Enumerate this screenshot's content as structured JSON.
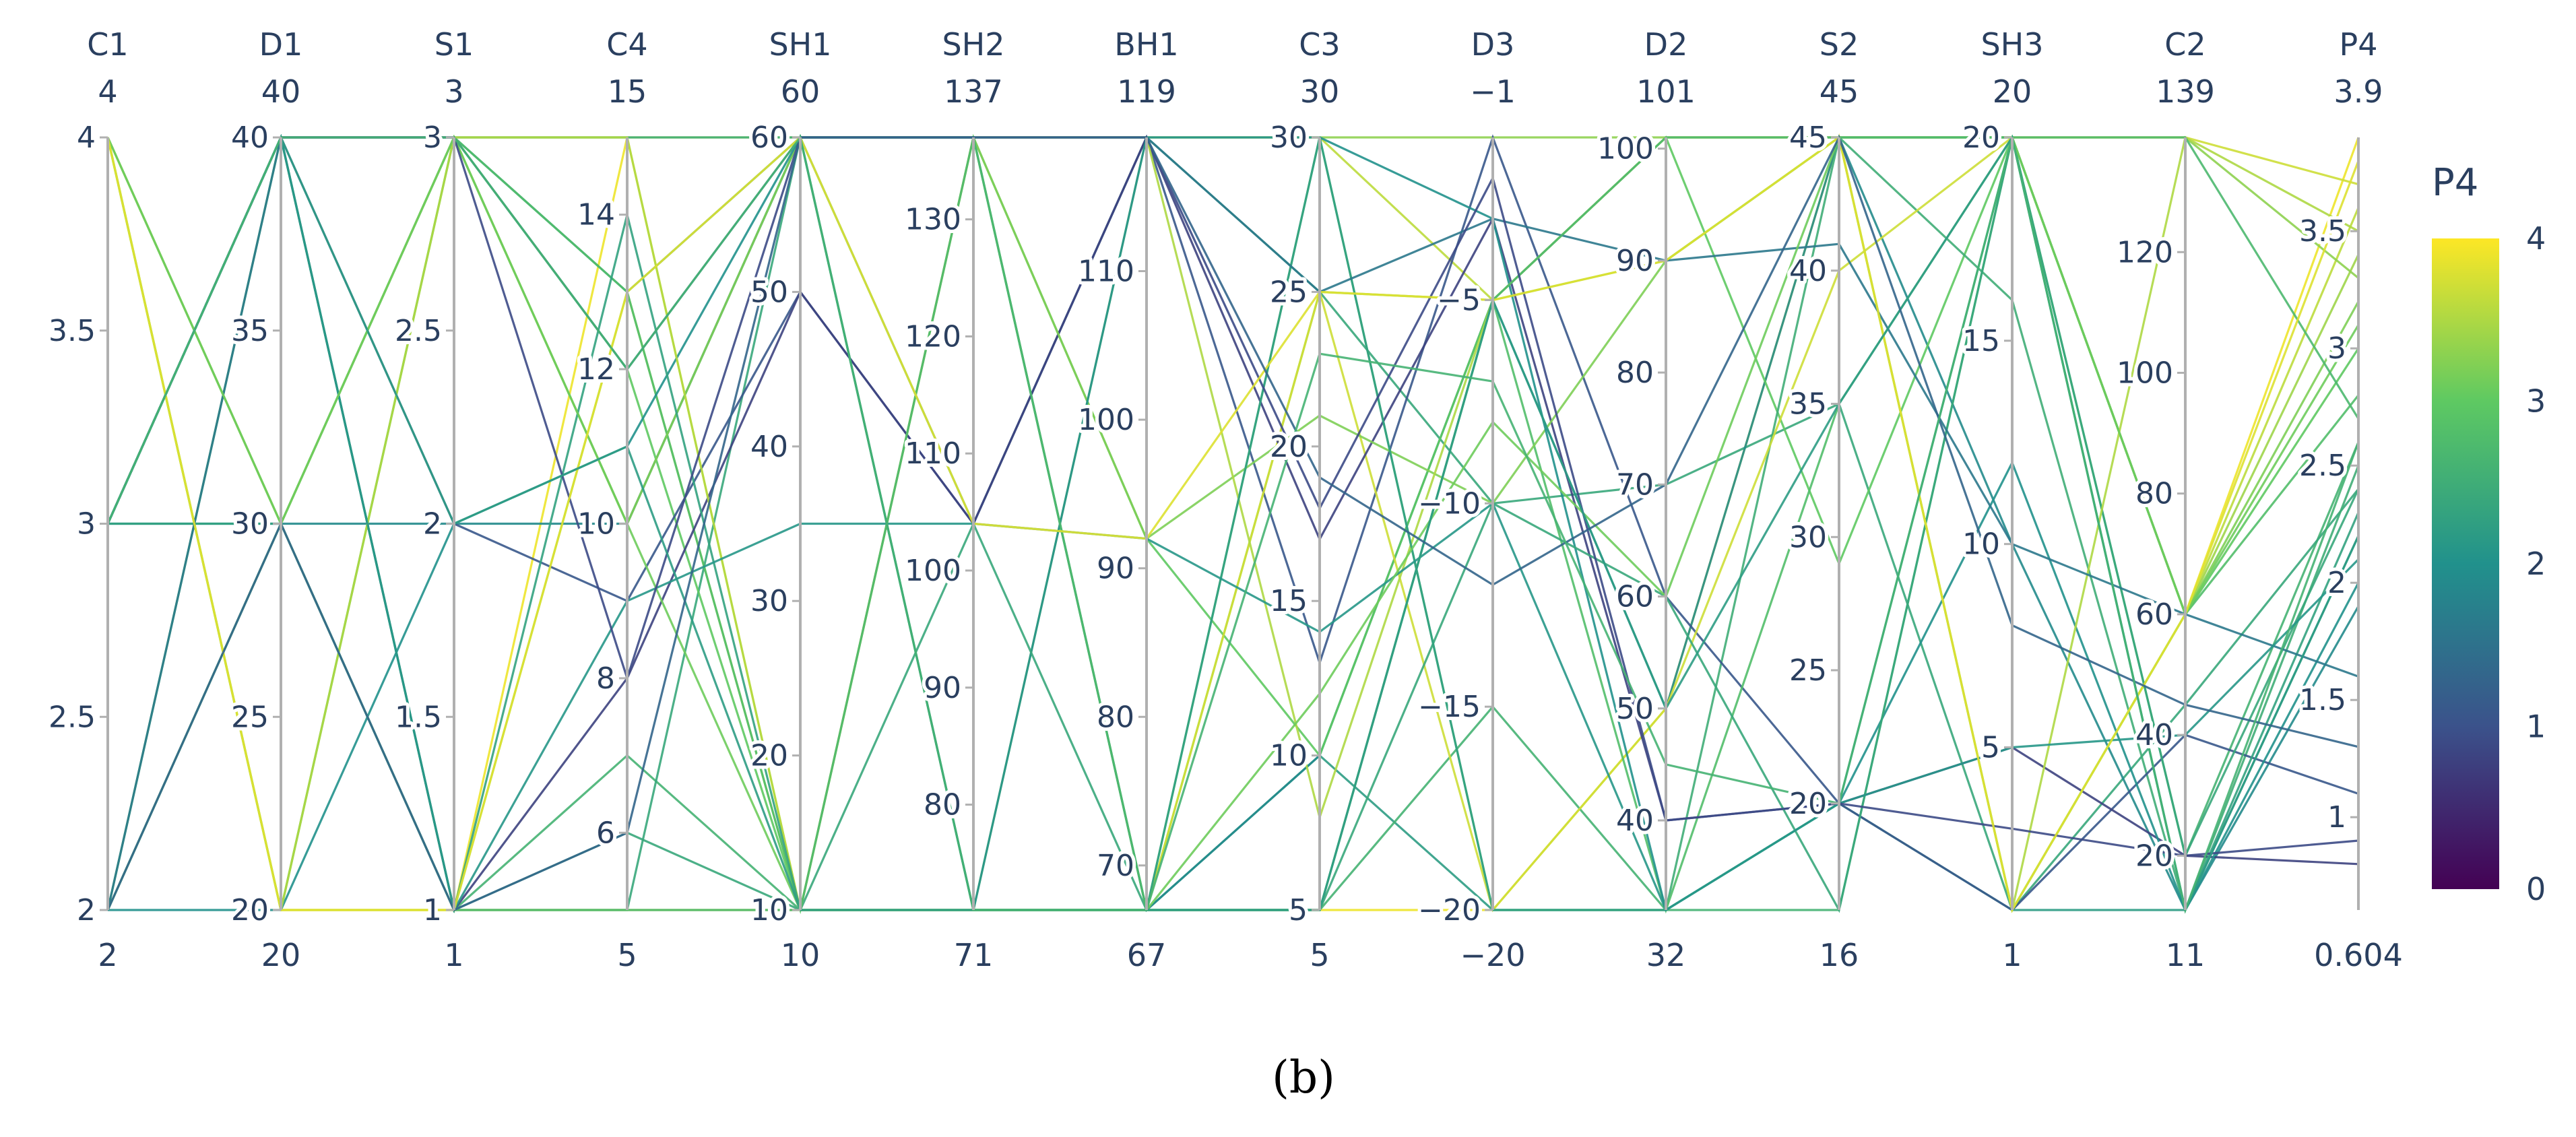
{
  "chart_data": {
    "type": "parcoords",
    "caption": "(b)",
    "color_by": "P4",
    "colorscale": "viridis",
    "colorbar": {
      "title": "P4",
      "range": [
        0,
        4
      ],
      "ticks": [
        0,
        1,
        2,
        3,
        4
      ],
      "tick_labels": [
        "0",
        "1",
        "2",
        "3",
        "4"
      ],
      "colors": [
        "#440154",
        "#3b528b",
        "#21918c",
        "#5ec962",
        "#fde725"
      ]
    },
    "axes": [
      {
        "name": "C1",
        "min_label": "2",
        "max_label": "4",
        "range": [
          2,
          4
        ],
        "ticks": [
          2,
          2.5,
          3,
          3.5,
          4
        ],
        "tick_labels": [
          "2",
          "2.5",
          "3",
          "3.5",
          "4"
        ]
      },
      {
        "name": "D1",
        "min_label": "20",
        "max_label": "40",
        "range": [
          20,
          40
        ],
        "ticks": [
          20,
          25,
          30,
          35,
          40
        ],
        "tick_labels": [
          "20",
          "25",
          "30",
          "35",
          "40"
        ]
      },
      {
        "name": "S1",
        "min_label": "1",
        "max_label": "3",
        "range": [
          1,
          3
        ],
        "ticks": [
          1,
          1.5,
          2,
          2.5,
          3
        ],
        "tick_labels": [
          "1",
          "1.5",
          "2",
          "2.5",
          "3"
        ]
      },
      {
        "name": "C4",
        "min_label": "5",
        "max_label": "15",
        "range": [
          5,
          15
        ],
        "ticks": [
          6,
          8,
          10,
          12,
          14
        ],
        "tick_labels": [
          "6",
          "8",
          "10",
          "12",
          "14"
        ]
      },
      {
        "name": "SH1",
        "min_label": "10",
        "max_label": "60",
        "range": [
          10,
          60
        ],
        "ticks": [
          10,
          20,
          30,
          40,
          50,
          60
        ],
        "tick_labels": [
          "10",
          "20",
          "30",
          "40",
          "50",
          "60"
        ]
      },
      {
        "name": "SH2",
        "min_label": "71",
        "max_label": "137",
        "range": [
          71,
          137
        ],
        "ticks": [
          80,
          90,
          100,
          110,
          120,
          130
        ],
        "tick_labels": [
          "80",
          "90",
          "100",
          "110",
          "120",
          "130"
        ]
      },
      {
        "name": "BH1",
        "min_label": "67",
        "max_label": "119",
        "range": [
          67,
          119
        ],
        "ticks": [
          70,
          80,
          90,
          100,
          110
        ],
        "tick_labels": [
          "70",
          "80",
          "90",
          "100",
          "110"
        ]
      },
      {
        "name": "C3",
        "min_label": "5",
        "max_label": "30",
        "range": [
          5,
          30
        ],
        "ticks": [
          5,
          10,
          15,
          20,
          25,
          30
        ],
        "tick_labels": [
          "5",
          "10",
          "15",
          "20",
          "25",
          "30"
        ]
      },
      {
        "name": "D3",
        "min_label": "−20",
        "max_label": "−1",
        "range": [
          -20,
          -1
        ],
        "ticks": [
          -20,
          -15,
          -10,
          -5
        ],
        "tick_labels": [
          "−20",
          "−15",
          "−10",
          "−5"
        ]
      },
      {
        "name": "D2",
        "min_label": "32",
        "max_label": "101",
        "range": [
          32,
          101
        ],
        "ticks": [
          40,
          50,
          60,
          70,
          80,
          90,
          100
        ],
        "tick_labels": [
          "40",
          "50",
          "60",
          "70",
          "80",
          "90",
          "100"
        ]
      },
      {
        "name": "S2",
        "min_label": "16",
        "max_label": "45",
        "range": [
          16,
          45
        ],
        "ticks": [
          20,
          25,
          30,
          35,
          40,
          45
        ],
        "tick_labels": [
          "20",
          "25",
          "30",
          "35",
          "40",
          "45"
        ]
      },
      {
        "name": "SH3",
        "min_label": "1",
        "max_label": "20",
        "range": [
          1,
          20
        ],
        "ticks": [
          5,
          10,
          15,
          20
        ],
        "tick_labels": [
          "5",
          "10",
          "15",
          "20"
        ]
      },
      {
        "name": "C2",
        "min_label": "11",
        "max_label": "139",
        "range": [
          11,
          139
        ],
        "ticks": [
          20,
          40,
          60,
          80,
          100,
          120
        ],
        "tick_labels": [
          "20",
          "40",
          "60",
          "80",
          "100",
          "120"
        ]
      },
      {
        "name": "P4",
        "min_label": "0.604",
        "max_label": "3.9",
        "range": [
          0.604,
          3.9
        ],
        "ticks": [
          1,
          1.5,
          2,
          2.5,
          3,
          3.5
        ],
        "tick_labels": [
          "1",
          "1.5",
          "2",
          "2.5",
          "3",
          "3.5"
        ]
      }
    ],
    "lines": [
      [
        4,
        20,
        1,
        15,
        10,
        137,
        67,
        5,
        -20,
        50,
        45,
        1,
        60,
        3.9
      ],
      [
        4,
        20,
        3,
        15,
        60,
        137,
        119,
        30,
        -5,
        101,
        45,
        20,
        60,
        3.6
      ],
      [
        4,
        30,
        1,
        13,
        10,
        71,
        67,
        25,
        -5,
        90,
        45,
        20,
        60,
        3.4
      ],
      [
        3,
        40,
        3,
        13,
        60,
        137,
        67,
        10,
        -20,
        32,
        20,
        1,
        11,
        2.2
      ],
      [
        2,
        30,
        3,
        10,
        60,
        71,
        119,
        30,
        -1,
        101,
        45,
        20,
        139,
        3.3
      ],
      [
        3,
        40,
        1,
        7,
        10,
        71,
        67,
        5,
        -15,
        32,
        16,
        20,
        20,
        2.6
      ],
      [
        2,
        40,
        1,
        5,
        60,
        104,
        119,
        25,
        -10,
        70,
        35,
        1,
        45,
        2.4
      ],
      [
        3,
        30,
        2,
        10,
        60,
        137,
        67,
        10,
        -5,
        50,
        45,
        10,
        11,
        1.9
      ],
      [
        4,
        20,
        3,
        12,
        10,
        137,
        92,
        10,
        -5,
        101,
        29,
        20,
        60,
        3.0
      ],
      [
        2,
        30,
        3,
        15,
        60,
        71,
        67,
        30,
        -20,
        32,
        45,
        16,
        11,
        2.5
      ],
      [
        3,
        40,
        2,
        9,
        50,
        104,
        119,
        13,
        -1,
        60,
        20,
        1,
        40,
        1.1
      ],
      [
        4,
        20,
        1,
        5,
        10,
        71,
        67,
        25,
        -20,
        50,
        40,
        20,
        139,
        3.7
      ],
      [
        2,
        40,
        3,
        13,
        10,
        137,
        67,
        5,
        -5,
        32,
        35,
        20,
        60,
        2.8
      ],
      [
        3,
        40,
        1,
        8,
        50,
        104,
        119,
        17,
        -3,
        40,
        20,
        5,
        20,
        0.8
      ],
      [
        4,
        30,
        3,
        10,
        60,
        137,
        92,
        21,
        -10,
        90,
        45,
        1,
        60,
        3.2
      ],
      [
        2,
        20,
        2,
        11,
        60,
        71,
        119,
        30,
        -3,
        32,
        20,
        12,
        11,
        2.0
      ],
      [
        3,
        40,
        1,
        6,
        10,
        104,
        67,
        5,
        -10,
        60,
        16,
        20,
        20,
        2.4
      ],
      [
        4,
        20,
        3,
        15,
        10,
        137,
        119,
        8,
        -5,
        101,
        45,
        1,
        139,
        3.5
      ],
      [
        3,
        30,
        1,
        14,
        10,
        71,
        67,
        30,
        -20,
        32,
        20,
        20,
        11,
        2.3
      ],
      [
        2,
        40,
        3,
        12,
        60,
        137,
        119,
        25,
        -3,
        90,
        41,
        10,
        60,
        1.6
      ],
      [
        3,
        40,
        1,
        9,
        35,
        104,
        92,
        14,
        -10,
        32,
        20,
        5,
        40,
        2.1
      ],
      [
        4,
        30,
        3,
        10,
        10,
        71,
        67,
        12,
        -8,
        60,
        45,
        20,
        60,
        3.1
      ],
      [
        2,
        30,
        1,
        5,
        10,
        137,
        67,
        5,
        -5,
        101,
        45,
        20,
        139,
        2.7
      ],
      [
        3,
        40,
        3,
        8,
        60,
        137,
        119,
        18,
        -2,
        40,
        20,
        3,
        20,
        0.9
      ],
      [
        4,
        20,
        1,
        13,
        60,
        104,
        92,
        25,
        -5,
        90,
        45,
        1,
        60,
        3.8
      ],
      [
        3,
        40,
        2,
        11,
        10,
        71,
        67,
        5,
        -5,
        50,
        35,
        20,
        11,
        2.2
      ],
      [
        2,
        30,
        1,
        6,
        60,
        137,
        119,
        19,
        -12,
        70,
        45,
        8,
        45,
        1.3
      ],
      [
        3,
        40,
        3,
        12,
        60,
        71,
        67,
        23,
        -7,
        45,
        20,
        20,
        11,
        2.6
      ]
    ]
  }
}
